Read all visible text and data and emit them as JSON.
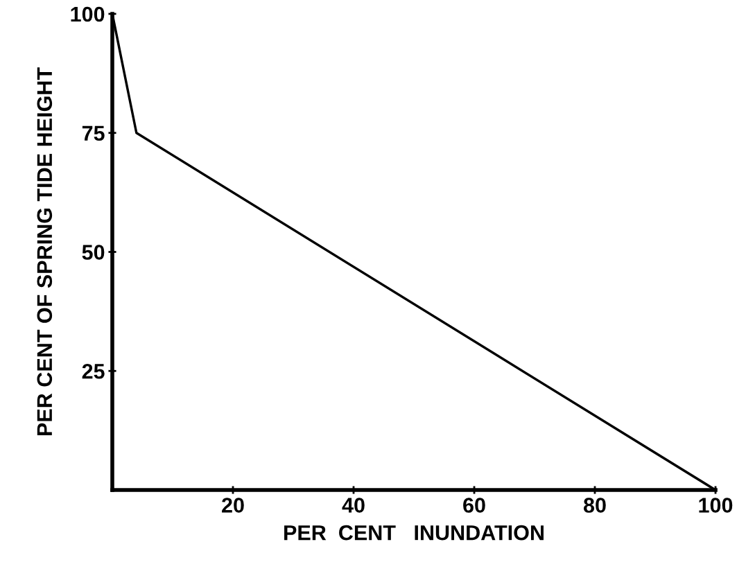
{
  "chart_data": {
    "type": "line",
    "xlabel": "PER  CENT   INUNDATION",
    "ylabel": "PER CENT OF SPRING TIDE HEIGHT",
    "x": [
      0,
      4,
      100
    ],
    "series": [
      {
        "color": "#000000",
        "values": [
          100,
          75,
          0
        ]
      }
    ],
    "xlim": [
      0,
      100
    ],
    "ylim": [
      0,
      100
    ],
    "xticks": [
      20,
      40,
      60,
      80,
      100
    ],
    "yticks": [
      25,
      50,
      75,
      100
    ],
    "grid": false,
    "legend": false,
    "marker": "none",
    "line_style": "solid"
  }
}
